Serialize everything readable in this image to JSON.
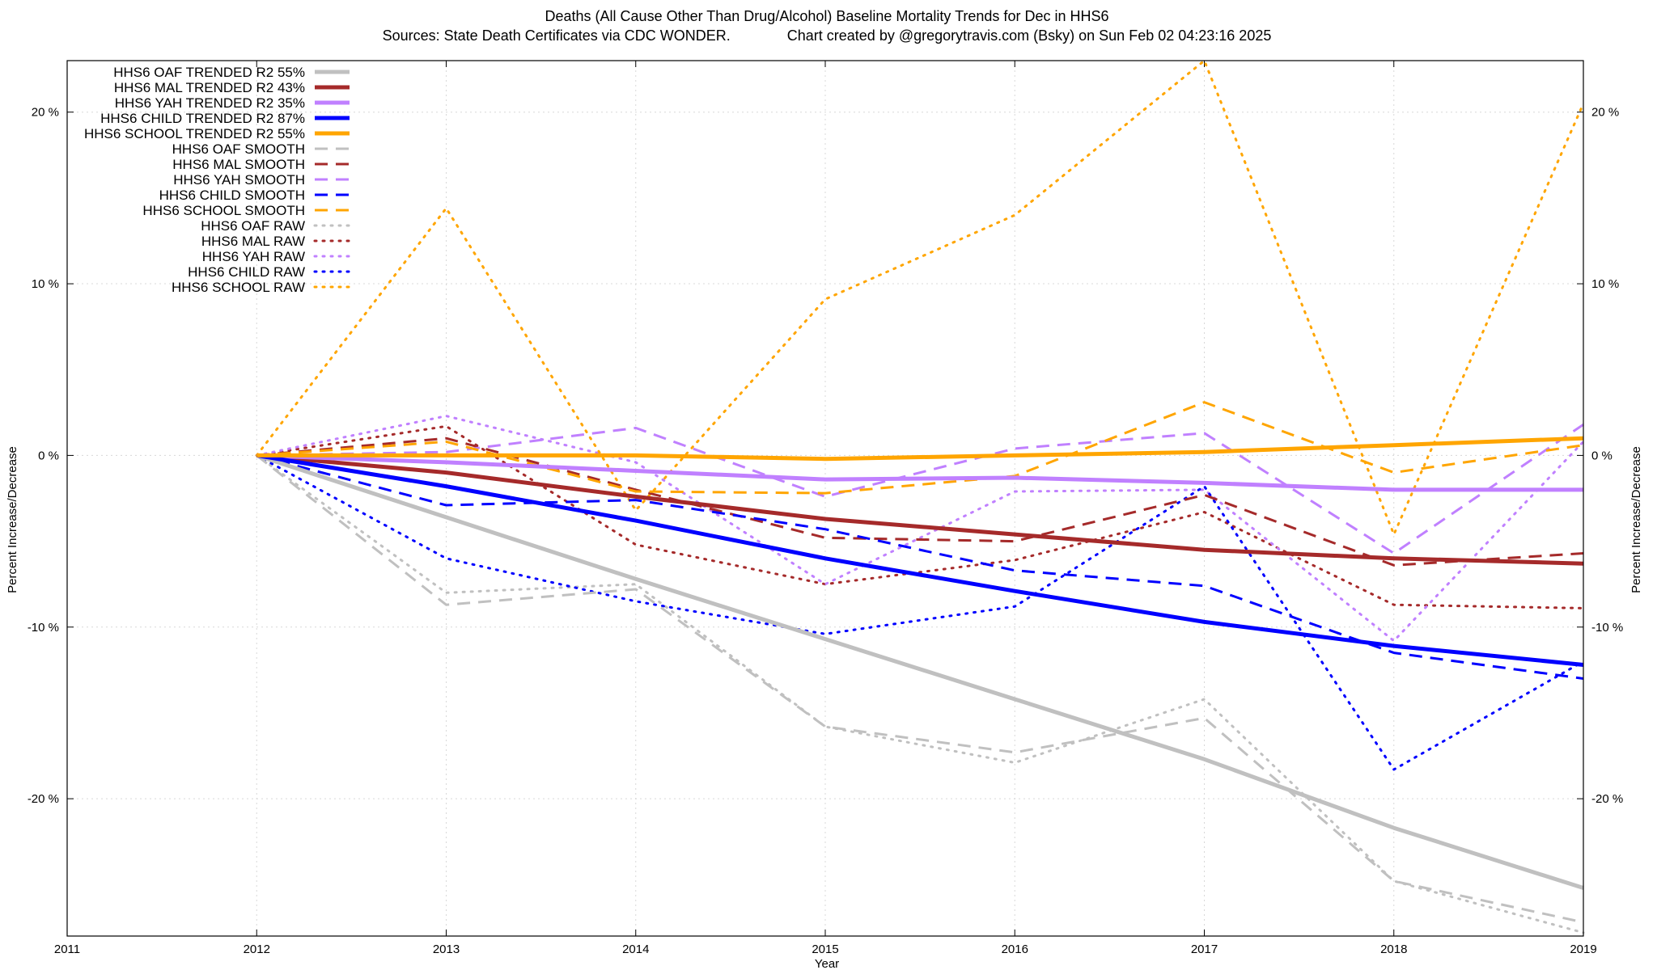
{
  "chart_data": {
    "type": "line",
    "title": "Deaths (All Cause Other Than Drug/Alcohol)  Baseline Mortality Trends for Dec in HHS6",
    "subtitle": "Sources: State Death Certificates via CDC WONDER.              Chart created by @gregorytravis.com (Bsky) on Sun Feb 02 04:23:16 2025",
    "xlabel": "Year",
    "ylabel": "Percent Increase/Decrease",
    "y2label": "Percent Increase/Decrease",
    "xlim": [
      2011,
      2019
    ],
    "ylim": [
      -28,
      23
    ],
    "x_ticks": [
      {
        "value": 2011,
        "label": "2011"
      },
      {
        "value": 2012,
        "label": "2012"
      },
      {
        "value": 2013,
        "label": "2013"
      },
      {
        "value": 2014,
        "label": "2014"
      },
      {
        "value": 2015,
        "label": "2015"
      },
      {
        "value": 2016,
        "label": "2016"
      },
      {
        "value": 2017,
        "label": "2017"
      },
      {
        "value": 2018,
        "label": "2018"
      },
      {
        "value": 2019,
        "label": "2019"
      }
    ],
    "y_ticks": [
      {
        "value": 20,
        "label": "20 %"
      },
      {
        "value": 10,
        "label": "10 %"
      },
      {
        "value": 0,
        "label": "0 %"
      },
      {
        "value": -10,
        "label": "-10 %"
      },
      {
        "value": -20,
        "label": "-20 %"
      }
    ],
    "grid": true,
    "legend_position": "top-left",
    "x": [
      2012,
      2013,
      2014,
      2015,
      2016,
      2017,
      2018,
      2019
    ],
    "series": [
      {
        "name": "HHS6 OAF TRENDED R2  55%",
        "color": "#c0c0c0",
        "style": "solid",
        "width": 5,
        "values": [
          0,
          -3.6,
          -7.2,
          -10.7,
          -14.2,
          -17.7,
          -21.7,
          -25.2
        ]
      },
      {
        "name": "HHS6 MAL TRENDED R2  43%",
        "color": "#a52a2a",
        "style": "solid",
        "width": 5,
        "values": [
          0,
          -1.0,
          -2.4,
          -3.7,
          -4.6,
          -5.5,
          -6.0,
          -6.3
        ]
      },
      {
        "name": "HHS6 YAH TRENDED R2  35%",
        "color": "#c080ff",
        "style": "solid",
        "width": 5,
        "values": [
          0,
          -0.4,
          -0.9,
          -1.4,
          -1.3,
          -1.6,
          -2.0,
          -2.0
        ]
      },
      {
        "name": "HHS6 CHILD TRENDED R2  87%",
        "color": "#0000ff",
        "style": "solid",
        "width": 5,
        "values": [
          0,
          -1.8,
          -3.8,
          -6.0,
          -7.9,
          -9.7,
          -11.1,
          -12.2
        ]
      },
      {
        "name": "HHS6 SCHOOL TRENDED R2  55%",
        "color": "#ffa500",
        "style": "solid",
        "width": 5,
        "values": [
          0,
          0,
          0,
          -0.2,
          0,
          0.2,
          0.6,
          1.0
        ]
      },
      {
        "name": "HHS6 OAF SMOOTH",
        "color": "#c0c0c0",
        "style": "dashed",
        "width": 3,
        "values": [
          0,
          -8.7,
          -7.8,
          -15.8,
          -17.3,
          -15.3,
          -24.8,
          -27.2
        ]
      },
      {
        "name": "HHS6 MAL SMOOTH",
        "color": "#a52a2a",
        "style": "dashed",
        "width": 3,
        "values": [
          0,
          1.0,
          -2.0,
          -4.8,
          -5.0,
          -2.3,
          -6.4,
          -5.7
        ]
      },
      {
        "name": "HHS6 YAH SMOOTH",
        "color": "#c080ff",
        "style": "dashed",
        "width": 3,
        "values": [
          0,
          0.2,
          1.6,
          -2.4,
          0.4,
          1.3,
          -5.7,
          1.8
        ]
      },
      {
        "name": "HHS6 CHILD SMOOTH",
        "color": "#0000ff",
        "style": "dashed",
        "width": 3,
        "values": [
          0,
          -2.9,
          -2.6,
          -4.3,
          -6.7,
          -7.6,
          -11.5,
          -13.0
        ]
      },
      {
        "name": "HHS6 SCHOOL SMOOTH",
        "color": "#ffa500",
        "style": "dashed",
        "width": 3,
        "values": [
          0,
          0.8,
          -2.1,
          -2.2,
          -1.2,
          3.1,
          -1.0,
          0.6
        ]
      },
      {
        "name": "HHS6 OAF RAW",
        "color": "#c0c0c0",
        "style": "dotted",
        "width": 3,
        "values": [
          0,
          -8.0,
          -7.5,
          -15.8,
          -17.9,
          -14.2,
          -24.8,
          -27.8
        ]
      },
      {
        "name": "HHS6 MAL RAW",
        "color": "#a52a2a",
        "style": "dotted",
        "width": 3,
        "values": [
          0,
          1.7,
          -5.2,
          -7.5,
          -6.1,
          -3.3,
          -8.7,
          -8.9
        ]
      },
      {
        "name": "HHS6 YAH RAW",
        "color": "#c080ff",
        "style": "dotted",
        "width": 3,
        "values": [
          0,
          2.3,
          -0.4,
          -7.5,
          -2.1,
          -2.0,
          -10.8,
          0.8
        ]
      },
      {
        "name": "HHS6 CHILD RAW",
        "color": "#0000ff",
        "style": "dotted",
        "width": 3,
        "values": [
          0,
          -6.0,
          -8.5,
          -10.4,
          -8.8,
          -1.8,
          -18.3,
          -12.0
        ]
      },
      {
        "name": "HHS6 SCHOOL RAW",
        "color": "#ffa500",
        "style": "dotted",
        "width": 3,
        "values": [
          0,
          14.4,
          -3.2,
          9.1,
          14.0,
          23.0,
          -4.6,
          20.5
        ]
      }
    ]
  }
}
